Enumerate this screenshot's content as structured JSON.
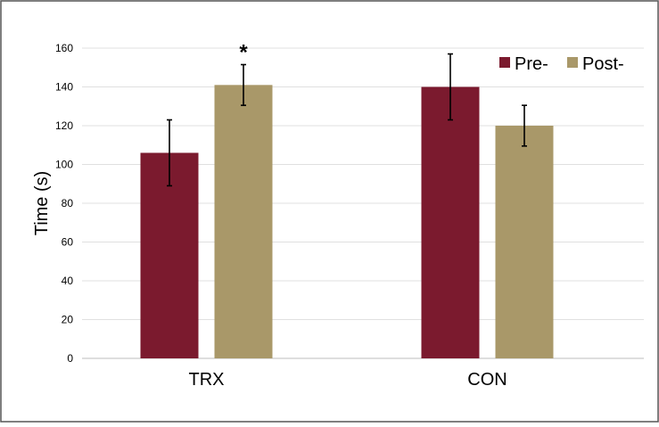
{
  "chart_data": {
    "type": "bar",
    "title": "",
    "xlabel": "",
    "ylabel": "Time (s)",
    "ylim": [
      0,
      160
    ],
    "yticks": [
      0,
      20,
      40,
      60,
      80,
      100,
      120,
      140,
      160
    ],
    "grid": true,
    "legend": "top-right",
    "categories": [
      "TRX",
      "CON"
    ],
    "series": [
      {
        "name": "Pre-",
        "color": "#7b1a2e",
        "values": [
          106,
          140
        ],
        "error": [
          17,
          17
        ]
      },
      {
        "name": "Post-",
        "color": "#a99869",
        "values": [
          141,
          120
        ],
        "error": [
          10.5,
          10.5
        ]
      }
    ],
    "annotations": [
      {
        "text": "*",
        "category": "TRX",
        "series": "Post-"
      }
    ]
  }
}
